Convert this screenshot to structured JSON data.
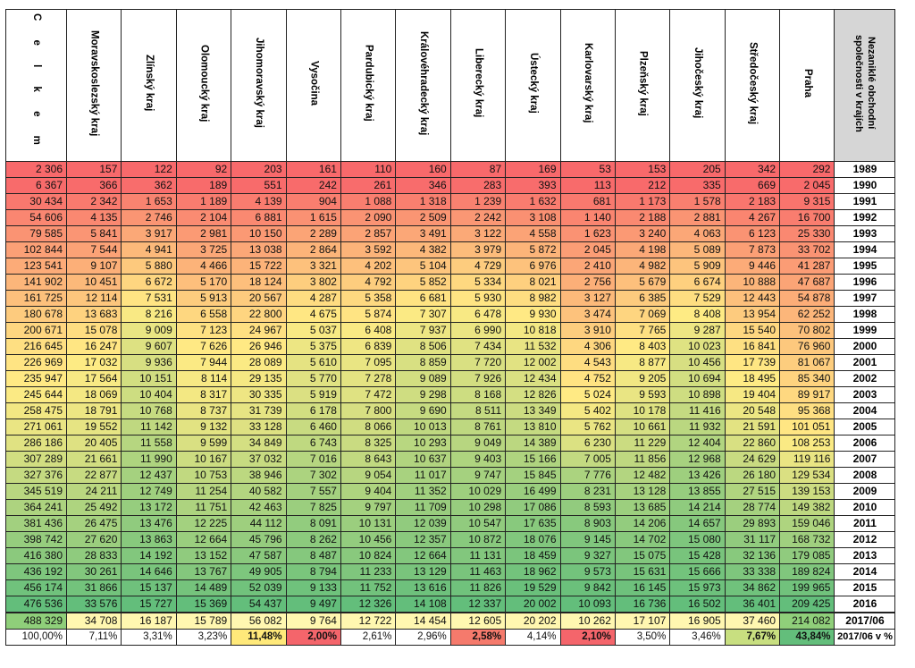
{
  "header": {
    "total_label": "C e l k e m",
    "regions": [
      "Moravskoslezský kraj",
      "Zlínský kraj",
      "Olomoucký kraj",
      "Jihomoravský kraj",
      "Vysočina",
      "Pardubický kraj",
      "Královéhradecký kraj",
      "Liberecký kraj",
      "Ústecký kraj",
      "Karlovarský kraj",
      "Plzeňský kraj",
      "Jihočeský kraj",
      "Středočeský kraj",
      "Praha"
    ],
    "year_column_label": "Nezaniklé obchodní společnosti v krajích"
  },
  "rows": [
    {
      "total": "2 306",
      "values": [
        "157",
        "122",
        "92",
        "203",
        "161",
        "110",
        "160",
        "87",
        "169",
        "53",
        "153",
        "205",
        "342",
        "292"
      ],
      "year": "1989"
    },
    {
      "total": "6 367",
      "values": [
        "366",
        "362",
        "189",
        "551",
        "242",
        "261",
        "346",
        "283",
        "393",
        "113",
        "212",
        "335",
        "669",
        "2 045"
      ],
      "year": "1990"
    },
    {
      "total": "30 434",
      "values": [
        "2 342",
        "1 653",
        "1 189",
        "4 139",
        "904",
        "1 088",
        "1 318",
        "1 239",
        "1 632",
        "681",
        "1 173",
        "1 578",
        "2 183",
        "9 315"
      ],
      "year": "1991"
    },
    {
      "total": "54 606",
      "values": [
        "4 135",
        "2 746",
        "2 104",
        "6 881",
        "1 615",
        "2 090",
        "2 509",
        "2 242",
        "3 108",
        "1 140",
        "2 188",
        "2 881",
        "4 267",
        "16 700"
      ],
      "year": "1992"
    },
    {
      "total": "79 585",
      "values": [
        "5 841",
        "3 917",
        "2 981",
        "10 150",
        "2 289",
        "2 857",
        "3 491",
        "3 122",
        "4 558",
        "1 623",
        "3 240",
        "4 063",
        "6 123",
        "25 330"
      ],
      "year": "1993"
    },
    {
      "total": "102 844",
      "values": [
        "7 544",
        "4 941",
        "3 725",
        "13 038",
        "2 864",
        "3 592",
        "4 382",
        "3 979",
        "5 872",
        "2 045",
        "4 198",
        "5 089",
        "7 873",
        "33 702"
      ],
      "year": "1994"
    },
    {
      "total": "123 541",
      "values": [
        "9 107",
        "5 880",
        "4 466",
        "15 722",
        "3 321",
        "4 202",
        "5 104",
        "4 729",
        "6 976",
        "2 410",
        "4 982",
        "5 909",
        "9 446",
        "41 287"
      ],
      "year": "1995"
    },
    {
      "total": "141 902",
      "values": [
        "10 451",
        "6 672",
        "5 170",
        "18 124",
        "3 802",
        "4 792",
        "5 852",
        "5 334",
        "8 021",
        "2 756",
        "5 679",
        "6 674",
        "10 888",
        "47 687"
      ],
      "year": "1996"
    },
    {
      "total": "161 725",
      "values": [
        "12 114",
        "7 531",
        "5 913",
        "20 567",
        "4 287",
        "5 358",
        "6 681",
        "5 930",
        "8 982",
        "3 127",
        "6 385",
        "7 529",
        "12 443",
        "54 878"
      ],
      "year": "1997"
    },
    {
      "total": "180 678",
      "values": [
        "13 683",
        "8 216",
        "6 558",
        "22 800",
        "4 675",
        "5 874",
        "7 307",
        "6 478",
        "9 930",
        "3 474",
        "7 069",
        "8 408",
        "13 954",
        "62 252"
      ],
      "year": "1998"
    },
    {
      "total": "200 671",
      "values": [
        "15 078",
        "9 009",
        "7 123",
        "24 967",
        "5 037",
        "6 408",
        "7 937",
        "6 990",
        "10 818",
        "3 910",
        "7 765",
        "9 287",
        "15 540",
        "70 802"
      ],
      "year": "1999"
    },
    {
      "total": "216 645",
      "values": [
        "16 247",
        "9 607",
        "7 626",
        "26 946",
        "5 375",
        "6 839",
        "8 506",
        "7 434",
        "11 532",
        "4 306",
        "8 403",
        "10 023",
        "16 841",
        "76 960"
      ],
      "year": "2000"
    },
    {
      "total": "226 969",
      "values": [
        "17 032",
        "9 936",
        "7 944",
        "28 089",
        "5 610",
        "7 095",
        "8 859",
        "7 720",
        "12 002",
        "4 543",
        "8 877",
        "10 456",
        "17 739",
        "81 067"
      ],
      "year": "2001"
    },
    {
      "total": "235 947",
      "values": [
        "17 564",
        "10 151",
        "8 114",
        "29 135",
        "5 770",
        "7 278",
        "9 089",
        "7 926",
        "12 434",
        "4 752",
        "9 205",
        "10 694",
        "18 495",
        "85 340"
      ],
      "year": "2002"
    },
    {
      "total": "245 644",
      "values": [
        "18 069",
        "10 404",
        "8 317",
        "30 335",
        "5 919",
        "7 472",
        "9 298",
        "8 168",
        "12 826",
        "5 024",
        "9 593",
        "10 898",
        "19 404",
        "89 917"
      ],
      "year": "2003"
    },
    {
      "total": "258 475",
      "values": [
        "18 791",
        "10 768",
        "8 737",
        "31 739",
        "6 178",
        "7 800",
        "9 690",
        "8 511",
        "13 349",
        "5 402",
        "10 178",
        "11 416",
        "20 548",
        "95 368"
      ],
      "year": "2004"
    },
    {
      "total": "271 061",
      "values": [
        "19 552",
        "11 142",
        "9 132",
        "33 128",
        "6 460",
        "8 066",
        "10 013",
        "8 761",
        "13 810",
        "5 762",
        "10 661",
        "11 932",
        "21 591",
        "101 051"
      ],
      "year": "2005"
    },
    {
      "total": "286 186",
      "values": [
        "20 405",
        "11 558",
        "9 599",
        "34 849",
        "6 743",
        "8 325",
        "10 293",
        "9 049",
        "14 389",
        "6 230",
        "11 229",
        "12 404",
        "22 860",
        "108 253"
      ],
      "year": "2006"
    },
    {
      "total": "307 289",
      "values": [
        "21 661",
        "11 990",
        "10 167",
        "37 032",
        "7 016",
        "8 643",
        "10 637",
        "9 403",
        "15 166",
        "7 005",
        "11 856",
        "12 968",
        "24 629",
        "119 116"
      ],
      "year": "2007"
    },
    {
      "total": "327 376",
      "values": [
        "22 877",
        "12 437",
        "10 753",
        "38 946",
        "7 302",
        "9 054",
        "11 017",
        "9 747",
        "15 845",
        "7 776",
        "12 482",
        "13 426",
        "26 180",
        "129 534"
      ],
      "year": "2008"
    },
    {
      "total": "345 519",
      "values": [
        "24 211",
        "12 749",
        "11 254",
        "40 582",
        "7 557",
        "9 404",
        "11 352",
        "10 029",
        "16 499",
        "8 231",
        "13 128",
        "13 855",
        "27 515",
        "139 153"
      ],
      "year": "2009"
    },
    {
      "total": "364 241",
      "values": [
        "25 492",
        "13 172",
        "11 751",
        "42 463",
        "7 825",
        "9 797",
        "11 709",
        "10 298",
        "17 086",
        "8 593",
        "13 685",
        "14 214",
        "28 774",
        "149 382"
      ],
      "year": "2010"
    },
    {
      "total": "381 436",
      "values": [
        "26 475",
        "13 476",
        "12 225",
        "44 112",
        "8 091",
        "10 131",
        "12 039",
        "10 547",
        "17 635",
        "8 903",
        "14 206",
        "14 657",
        "29 893",
        "159 046"
      ],
      "year": "2011"
    },
    {
      "total": "398 742",
      "values": [
        "27 620",
        "13 863",
        "12 664",
        "45 796",
        "8 262",
        "10 456",
        "12 357",
        "10 872",
        "18 076",
        "9 145",
        "14 702",
        "15 080",
        "31 117",
        "168 732"
      ],
      "year": "2012"
    },
    {
      "total": "416 380",
      "values": [
        "28 833",
        "14 192",
        "13 152",
        "47 587",
        "8 487",
        "10 824",
        "12 664",
        "11 131",
        "18 459",
        "9 327",
        "15 075",
        "15 428",
        "32 136",
        "179 085"
      ],
      "year": "2013"
    },
    {
      "total": "436 192",
      "values": [
        "30 261",
        "14 646",
        "13 767",
        "49 905",
        "8 794",
        "11 233",
        "13 129",
        "11 463",
        "18 962",
        "9 573",
        "15 631",
        "15 666",
        "33 338",
        "189 824"
      ],
      "year": "2014"
    },
    {
      "total": "456 174",
      "values": [
        "31 866",
        "15 137",
        "14 489",
        "52 039",
        "9 133",
        "11 752",
        "13 616",
        "11 826",
        "19 529",
        "9 842",
        "16 145",
        "15 973",
        "34 862",
        "199 965"
      ],
      "year": "2015"
    },
    {
      "total": "476 536",
      "values": [
        "33 576",
        "15 727",
        "15 369",
        "54 437",
        "9 497",
        "12 326",
        "14 108",
        "12 337",
        "20 002",
        "10 093",
        "16 736",
        "16 502",
        "36 401",
        "209 425"
      ],
      "year": "2016"
    }
  ],
  "total_row": {
    "total": "488 329",
    "values": [
      "34 708",
      "16 187",
      "15 789",
      "56 082",
      "9 764",
      "12 722",
      "14 454",
      "12 605",
      "20 202",
      "10 262",
      "17 107",
      "16 905",
      "37 460",
      "214 082"
    ],
    "year": "2017/06"
  },
  "percent_row": {
    "total": "100,00%",
    "values": [
      "7,11%",
      "3,31%",
      "3,23%",
      "11,48%",
      "2,00%",
      "2,61%",
      "2,96%",
      "2,58%",
      "4,14%",
      "2,10%",
      "3,50%",
      "3,46%",
      "7,67%",
      "43,84%"
    ],
    "year": "2017/06 v %"
  },
  "percent_highlight": {
    "bold_indices": [
      3,
      4,
      7,
      9,
      12,
      13
    ],
    "colors": {
      "3": "#ffe97a",
      "4": "#f4656b",
      "7": "#f57a6c",
      "9": "#f4656b",
      "12": "#c8df80",
      "13": "#63be7b"
    }
  },
  "colors": {
    "low": "#f8696b",
    "mid": "#ffeb84",
    "high": "#63be7b"
  }
}
